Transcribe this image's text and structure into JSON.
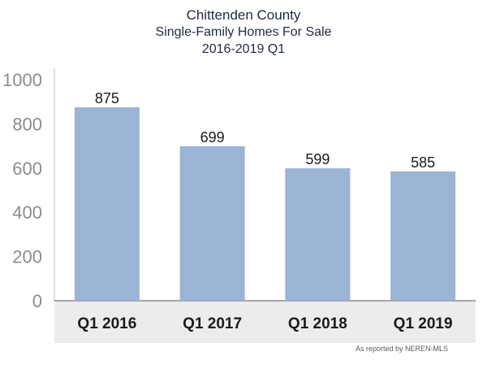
{
  "chart_data": {
    "type": "bar",
    "title": "Chittenden County",
    "subtitle": [
      "Single-Family Homes For Sale",
      "2016-2019 Q1"
    ],
    "categories": [
      "Q1 2016",
      "Q1 2017",
      "Q1 2018",
      "Q1 2019"
    ],
    "values": [
      875,
      699,
      599,
      585
    ],
    "data_labels": [
      "875",
      "699",
      "599",
      "585"
    ],
    "ylim": [
      0,
      1000
    ],
    "yticks": [
      0,
      200,
      400,
      600,
      800,
      1000
    ],
    "xlabel": "",
    "ylabel": "",
    "grid": false,
    "bar_color": "#9bb3d4",
    "axis_band_color": "#ececec"
  },
  "source_note": "As reported by NEREN-MLS"
}
